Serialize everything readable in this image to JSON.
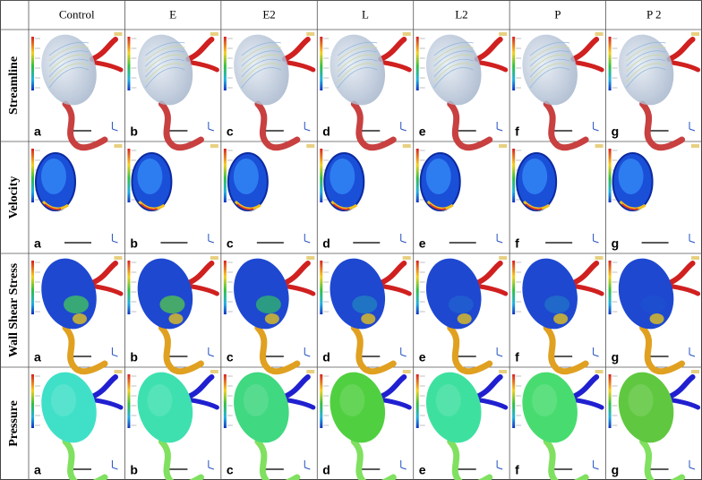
{
  "columns": [
    "Control",
    "E",
    "E2",
    "L",
    "L2",
    "P",
    "P 2"
  ],
  "rows": [
    {
      "label": "Streamline",
      "letters": [
        "a",
        "b",
        "c",
        "d",
        "e",
        "f",
        "g"
      ]
    },
    {
      "label": "Velocity",
      "letters": [
        "a",
        "b",
        "c",
        "d",
        "e",
        "f",
        "g"
      ]
    },
    {
      "label": "Wall Shear Stress",
      "letters": [
        "a",
        "b",
        "c",
        "d",
        "e",
        "f",
        "g"
      ]
    },
    {
      "label": "Pressure",
      "letters": [
        "a",
        "b",
        "c",
        "d",
        "e",
        "f",
        "g"
      ]
    }
  ]
}
